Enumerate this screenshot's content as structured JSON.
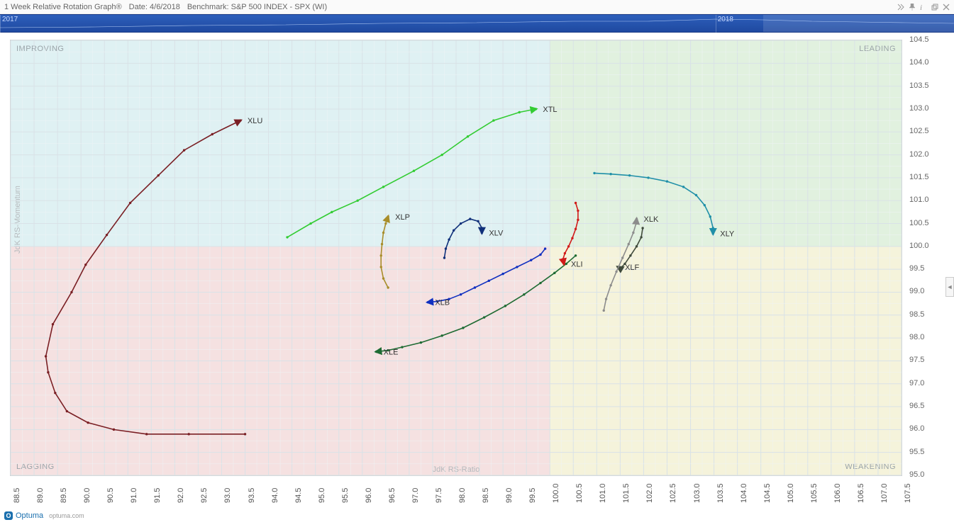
{
  "titlebar": {
    "title": "1 Week Relative Rotation Graph®",
    "date_label": "Date:",
    "date_value": "4/6/2018",
    "bench_label": "Benchmark:",
    "bench_value": "S&P 500 INDEX - SPX (WI)"
  },
  "timeline": {
    "start_label": "2017",
    "end_label": "2018",
    "highlight_start_pct": 80,
    "highlight_width_pct": 20
  },
  "footer": {
    "brand": "Optuma",
    "url": "optuma.com"
  },
  "chart": {
    "type": "rrg-scatter-tails",
    "background_color": "#ffffff",
    "grid_color": "#d9e2e7",
    "grid_minor_color": "#eef3f5",
    "xlim": [
      88.5,
      107.5
    ],
    "ylim": [
      95.0,
      104.5
    ],
    "xcenter": 100.0,
    "ycenter": 100.0,
    "xtick_step": 0.5,
    "ytick_step": 0.5,
    "fine_x_step": 0.25,
    "fine_y_step": 0.25,
    "xlabel": "JdK RS-Ratio",
    "ylabel": "JdK RS-Momentum",
    "label_fontsize": 11,
    "quadrants": {
      "improving": {
        "label": "IMPROVING",
        "color": "#dff1f3"
      },
      "leading": {
        "label": "LEADING",
        "color": "#e1f1df"
      },
      "lagging": {
        "label": "LAGGING",
        "color": "#f5e1e1"
      },
      "weakening": {
        "label": "WEAKENING",
        "color": "#f5f3db"
      }
    },
    "series": [
      {
        "name": "XLU",
        "color": "#7a1f24",
        "points": [
          [
            93.5,
            95.9
          ],
          [
            92.3,
            95.9
          ],
          [
            91.4,
            95.9
          ],
          [
            90.7,
            96.0
          ],
          [
            90.15,
            96.15
          ],
          [
            89.7,
            96.4
          ],
          [
            89.45,
            96.8
          ],
          [
            89.3,
            97.25
          ],
          [
            89.25,
            97.6
          ],
          [
            89.4,
            98.3
          ],
          [
            89.8,
            99.0
          ],
          [
            90.1,
            99.6
          ],
          [
            90.55,
            100.25
          ],
          [
            91.05,
            100.95
          ],
          [
            91.65,
            101.55
          ],
          [
            92.2,
            102.1
          ],
          [
            92.8,
            102.45
          ],
          [
            93.4,
            102.75
          ]
        ]
      },
      {
        "name": "XTL",
        "color": "#33cc33",
        "points": [
          [
            94.4,
            100.2
          ],
          [
            94.9,
            100.5
          ],
          [
            95.35,
            100.75
          ],
          [
            95.9,
            101.0
          ],
          [
            96.45,
            101.3
          ],
          [
            97.1,
            101.65
          ],
          [
            97.7,
            102.0
          ],
          [
            98.25,
            102.4
          ],
          [
            98.8,
            102.75
          ],
          [
            99.35,
            102.93
          ],
          [
            99.7,
            103.0
          ]
        ]
      },
      {
        "name": "XLP",
        "color": "#a88d2a",
        "points": [
          [
            96.55,
            99.1
          ],
          [
            96.45,
            99.3
          ],
          [
            96.4,
            99.55
          ],
          [
            96.4,
            99.8
          ],
          [
            96.42,
            100.05
          ],
          [
            96.45,
            100.3
          ],
          [
            96.5,
            100.5
          ],
          [
            96.55,
            100.65
          ]
        ]
      },
      {
        "name": "XLV",
        "color": "#10307a",
        "points": [
          [
            97.75,
            99.75
          ],
          [
            97.78,
            99.95
          ],
          [
            97.85,
            100.15
          ],
          [
            97.95,
            100.35
          ],
          [
            98.1,
            100.5
          ],
          [
            98.3,
            100.6
          ],
          [
            98.47,
            100.55
          ],
          [
            98.55,
            100.4
          ],
          [
            98.55,
            100.3
          ]
        ]
      },
      {
        "name": "XLB",
        "color": "#1030c0",
        "points": [
          [
            99.9,
            99.95
          ],
          [
            99.8,
            99.82
          ],
          [
            99.6,
            99.7
          ],
          [
            99.3,
            99.55
          ],
          [
            99.0,
            99.4
          ],
          [
            98.7,
            99.25
          ],
          [
            98.4,
            99.1
          ],
          [
            98.1,
            98.95
          ],
          [
            97.85,
            98.85
          ],
          [
            97.6,
            98.8
          ],
          [
            97.4,
            98.78
          ]
        ]
      },
      {
        "name": "XLE",
        "color": "#1e6b33",
        "points": [
          [
            100.55,
            99.8
          ],
          [
            100.35,
            99.62
          ],
          [
            100.1,
            99.42
          ],
          [
            99.8,
            99.2
          ],
          [
            99.45,
            98.95
          ],
          [
            99.05,
            98.7
          ],
          [
            98.6,
            98.45
          ],
          [
            98.15,
            98.22
          ],
          [
            97.7,
            98.05
          ],
          [
            97.25,
            97.9
          ],
          [
            96.85,
            97.8
          ],
          [
            96.55,
            97.73
          ],
          [
            96.3,
            97.7
          ]
        ]
      },
      {
        "name": "XLI",
        "color": "#d11a1a",
        "points": [
          [
            100.55,
            100.95
          ],
          [
            100.6,
            100.78
          ],
          [
            100.6,
            100.58
          ],
          [
            100.55,
            100.38
          ],
          [
            100.48,
            100.18
          ],
          [
            100.4,
            100.0
          ],
          [
            100.32,
            99.85
          ],
          [
            100.28,
            99.72
          ],
          [
            100.3,
            99.62
          ]
        ]
      },
      {
        "name": "XLF",
        "color": "#3f4a3b",
        "points": [
          [
            101.98,
            100.4
          ],
          [
            101.95,
            100.2
          ],
          [
            101.85,
            100.0
          ],
          [
            101.72,
            99.8
          ],
          [
            101.6,
            99.62
          ],
          [
            101.5,
            99.52
          ],
          [
            101.45,
            99.55
          ]
        ]
      },
      {
        "name": "XLK",
        "color": "#8c8c8c",
        "points": [
          [
            101.15,
            98.6
          ],
          [
            101.2,
            98.85
          ],
          [
            101.3,
            99.15
          ],
          [
            101.42,
            99.45
          ],
          [
            101.55,
            99.75
          ],
          [
            101.68,
            100.05
          ],
          [
            101.78,
            100.3
          ],
          [
            101.84,
            100.5
          ],
          [
            101.85,
            100.6
          ]
        ]
      },
      {
        "name": "XLY",
        "color": "#1f8fa8",
        "points": [
          [
            100.95,
            101.6
          ],
          [
            101.3,
            101.58
          ],
          [
            101.7,
            101.55
          ],
          [
            102.1,
            101.5
          ],
          [
            102.5,
            101.42
          ],
          [
            102.85,
            101.3
          ],
          [
            103.12,
            101.12
          ],
          [
            103.3,
            100.9
          ],
          [
            103.42,
            100.65
          ],
          [
            103.48,
            100.4
          ],
          [
            103.48,
            100.28
          ]
        ]
      }
    ]
  }
}
